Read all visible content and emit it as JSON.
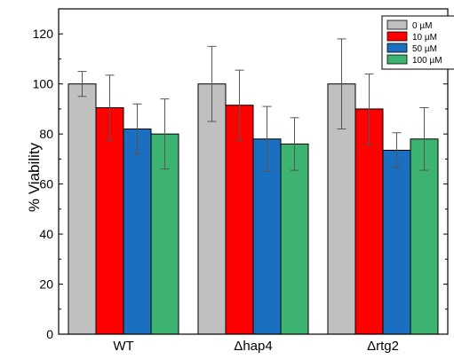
{
  "chart_data": {
    "type": "bar",
    "categories": [
      "WT",
      "Δhap4",
      "Δrtg2"
    ],
    "ylabel": "% Viability",
    "xlabel": "",
    "ylim": [
      0,
      130
    ],
    "yticks": [
      0,
      20,
      40,
      60,
      80,
      100,
      120
    ],
    "grid": false,
    "legend_position": "top-right",
    "series": [
      {
        "name": "0 µM",
        "color": "#c0c0c0",
        "values": [
          100,
          100,
          100
        ],
        "errors": [
          5,
          15,
          18
        ]
      },
      {
        "name": "10 µM",
        "color": "#ff0000",
        "values": [
          90.5,
          91.5,
          90
        ],
        "errors": [
          13,
          14,
          14
        ]
      },
      {
        "name": "50 µM",
        "color": "#1a6fc0",
        "values": [
          82,
          78,
          73.5
        ],
        "errors": [
          10,
          13,
          7
        ]
      },
      {
        "name": "100 µM",
        "color": "#3cb371",
        "values": [
          80,
          76,
          78
        ],
        "errors": [
          14,
          10.5,
          12.5
        ]
      }
    ]
  }
}
